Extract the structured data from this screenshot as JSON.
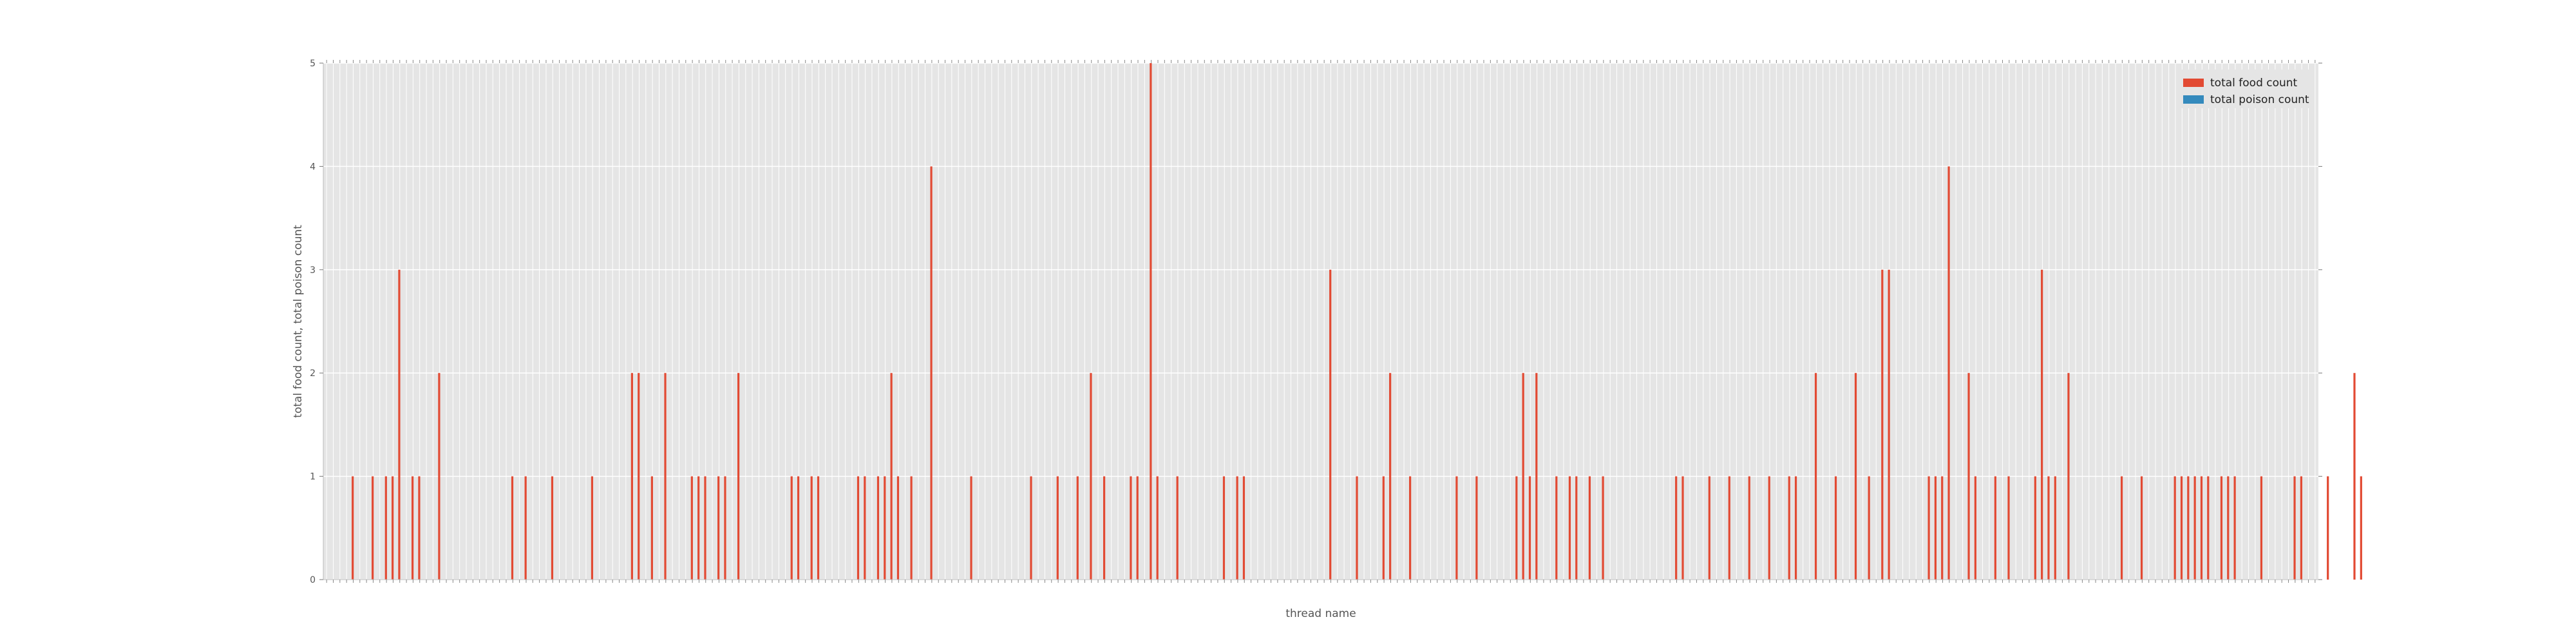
{
  "chart_data": {
    "type": "bar",
    "title": "",
    "xlabel": "thread name",
    "ylabel": "total food count, total poison count",
    "ylim": [
      0,
      5
    ],
    "yticks": [
      0,
      1,
      2,
      3,
      4,
      5
    ],
    "grid": true,
    "legend_position": "top-right",
    "background_color": "#e5e5e5",
    "grid_color": "#ffffff",
    "category_count": 300,
    "series": [
      {
        "name": "total food count",
        "color": "#e24a33",
        "values": [
          0,
          0,
          0,
          0,
          1,
          0,
          0,
          1,
          0,
          1,
          1,
          3,
          0,
          1,
          1,
          0,
          0,
          2,
          0,
          0,
          0,
          0,
          0,
          0,
          0,
          0,
          0,
          0,
          1,
          0,
          1,
          0,
          0,
          0,
          1,
          0,
          0,
          0,
          0,
          0,
          1,
          0,
          0,
          0,
          0,
          0,
          2,
          2,
          0,
          1,
          0,
          2,
          0,
          0,
          0,
          1,
          1,
          1,
          0,
          1,
          1,
          0,
          2,
          0,
          0,
          0,
          0,
          0,
          0,
          0,
          1,
          1,
          0,
          1,
          1,
          0,
          0,
          0,
          0,
          0,
          1,
          1,
          0,
          1,
          1,
          2,
          1,
          0,
          1,
          0,
          0,
          4,
          0,
          0,
          0,
          0,
          0,
          1,
          0,
          0,
          0,
          0,
          0,
          0,
          0,
          0,
          1,
          0,
          0,
          0,
          1,
          0,
          0,
          1,
          0,
          2,
          0,
          1,
          0,
          0,
          0,
          1,
          1,
          0,
          5,
          1,
          0,
          0,
          1,
          0,
          0,
          0,
          0,
          0,
          0,
          1,
          0,
          1,
          1,
          0,
          0,
          0,
          0,
          0,
          0,
          0,
          0,
          0,
          0,
          0,
          0,
          3,
          0,
          0,
          0,
          1,
          0,
          0,
          0,
          1,
          2,
          0,
          0,
          1,
          0,
          0,
          0,
          0,
          0,
          0,
          1,
          0,
          0,
          1,
          0,
          0,
          0,
          0,
          0,
          1,
          2,
          1,
          2,
          0,
          0,
          1,
          0,
          1,
          1,
          0,
          1,
          0,
          1,
          0,
          0,
          0,
          0,
          0,
          0,
          0,
          0,
          0,
          0,
          1,
          1,
          0,
          0,
          0,
          1,
          0,
          0,
          1,
          0,
          0,
          1,
          0,
          0,
          1,
          0,
          0,
          1,
          1,
          0,
          0,
          2,
          0,
          0,
          1,
          0,
          0,
          2,
          0,
          1,
          0,
          3,
          3,
          0,
          0,
          0,
          0,
          0,
          1,
          1,
          1,
          4,
          0,
          0,
          2,
          1,
          0,
          0,
          1,
          0,
          1,
          0,
          0,
          0,
          1,
          3,
          1,
          1,
          0,
          2,
          0,
          0,
          0,
          0,
          0,
          0,
          0,
          1,
          0,
          0,
          1,
          0,
          0,
          0,
          0,
          1,
          1,
          1,
          1,
          1,
          1,
          0,
          1,
          1,
          1,
          0,
          0,
          0,
          1,
          0,
          0,
          0,
          0,
          1,
          1,
          0,
          0,
          0,
          1,
          0,
          0,
          0,
          2,
          1,
          0,
          0
        ]
      },
      {
        "name": "total poison count",
        "color": "#348abd",
        "values": [
          0,
          0,
          0,
          0,
          0,
          0,
          0,
          0,
          0,
          0,
          0,
          0,
          0,
          0,
          0,
          0,
          0,
          0,
          0,
          0,
          0,
          0,
          0,
          0,
          0,
          0,
          0,
          0,
          0,
          0,
          0,
          0,
          0,
          0,
          0,
          0,
          0,
          0,
          0,
          0,
          0,
          0,
          0,
          0,
          0,
          0,
          0,
          0,
          0,
          0,
          0,
          0,
          0,
          0,
          0,
          0,
          0,
          0,
          0,
          0,
          0,
          0,
          0,
          0,
          0,
          0,
          0,
          0,
          0,
          0,
          0,
          0,
          0,
          0,
          0,
          0,
          0,
          0,
          0,
          0,
          0,
          0,
          0,
          0,
          0,
          0,
          0,
          0,
          0,
          0,
          0,
          0,
          0,
          0,
          0,
          0,
          0,
          0,
          0,
          0,
          0,
          0,
          0,
          0,
          0,
          0,
          0,
          0,
          0,
          0,
          0,
          0,
          0,
          0,
          0,
          0,
          0,
          0,
          0,
          0,
          0,
          0,
          0,
          0,
          0,
          0,
          0,
          0,
          0,
          0,
          0,
          0,
          0,
          0,
          0,
          0,
          0,
          0,
          0,
          0,
          0,
          0,
          0,
          0,
          0,
          0,
          0,
          0,
          0,
          0,
          0,
          0,
          0,
          0,
          0,
          0,
          0,
          0,
          0,
          0,
          0,
          0,
          0,
          0,
          0,
          0,
          0,
          0,
          0,
          0,
          0,
          0,
          0,
          0,
          0,
          0,
          0,
          0,
          0,
          0,
          0,
          0,
          0,
          0,
          0,
          0,
          0,
          0,
          0,
          0,
          0,
          0,
          0,
          0,
          0,
          0,
          0,
          0,
          0,
          0,
          0,
          0,
          0,
          0,
          0,
          0,
          0,
          0,
          0,
          0,
          0,
          0,
          0,
          0,
          0,
          0,
          0,
          0,
          0,
          0,
          0,
          0,
          0,
          0,
          0,
          0,
          0,
          0,
          0,
          0,
          0,
          0,
          0,
          0,
          0,
          0,
          0,
          0,
          0,
          0,
          0,
          0,
          0,
          0,
          0,
          0,
          0,
          0,
          0,
          0,
          0,
          0,
          0,
          0,
          0,
          0,
          0,
          0,
          0,
          0,
          0,
          0,
          0,
          0,
          0,
          0,
          0,
          0,
          0,
          0,
          0,
          0,
          0,
          0,
          0,
          0,
          0,
          0,
          0,
          0,
          0,
          0,
          0,
          0,
          0,
          0,
          0,
          0,
          0,
          0,
          0,
          0,
          0,
          0,
          0,
          0,
          0,
          0,
          0,
          0,
          0,
          0,
          0,
          0,
          0,
          0,
          0,
          0
        ]
      }
    ]
  }
}
